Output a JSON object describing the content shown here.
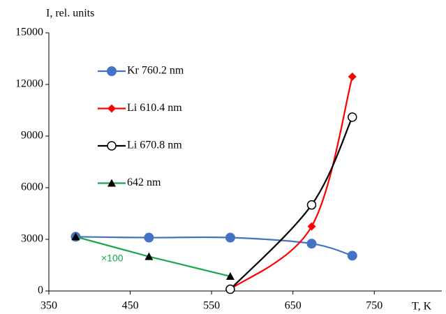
{
  "chart_data": {
    "type": "line",
    "y_label": "I, rel. units",
    "x_label": "T, K",
    "xlim": [
      350,
      833
    ],
    "xticks": [
      350,
      450,
      550,
      650,
      750
    ],
    "ylim": [
      0,
      15000
    ],
    "yticks": [
      0,
      3000,
      6000,
      9000,
      12000,
      15000
    ],
    "grid": false,
    "legend": "upper left",
    "annotation": {
      "text": "×100",
      "color": "#1aa64a"
    },
    "series": [
      {
        "name": "Kr 760.2 nm",
        "color": "#4472c4",
        "marker": "circle",
        "marker_color": "#4472c4",
        "smooth": true,
        "x": [
          383,
          473,
          573,
          673,
          723
        ],
        "values": [
          3150,
          3100,
          3100,
          2750,
          2050
        ]
      },
      {
        "name": "Li 610.4 nm",
        "color": "#ff0000",
        "marker": "diamond",
        "marker_color": "#ff0000",
        "smooth": true,
        "x": [
          573,
          673,
          723
        ],
        "values": [
          100,
          3750,
          12450
        ]
      },
      {
        "name": "Li 670.8 nm",
        "color": "#000000",
        "marker": "open-circle",
        "marker_color": "#000000",
        "smooth": true,
        "x": [
          573,
          673,
          723
        ],
        "values": [
          100,
          5000,
          10100
        ]
      },
      {
        "name": "642 nm",
        "color": "#1aa64a",
        "marker": "triangle",
        "marker_color": "#000000",
        "smooth": false,
        "x": [
          383,
          473,
          573
        ],
        "values": [
          3150,
          2000,
          850
        ]
      }
    ]
  }
}
